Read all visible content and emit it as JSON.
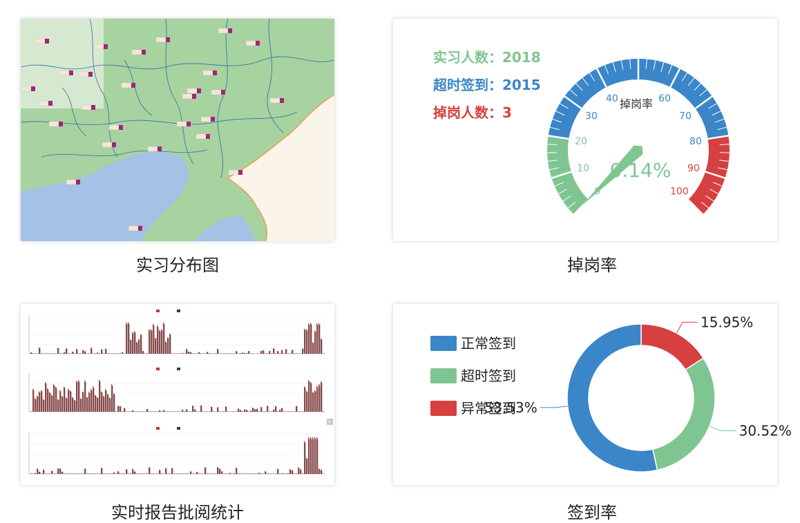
{
  "captions": {
    "map": "实习分布图",
    "gauge": "掉岗率",
    "bars": "实时报告批阅统计",
    "donut": "签到率"
  },
  "gauge": {
    "stats": [
      {
        "label": "实习人数：2018",
        "color": "#7fc592"
      },
      {
        "label": "超时签到：2015",
        "color": "#3a86c8"
      },
      {
        "label": "掉岗人数：3",
        "color": "#d64040"
      }
    ],
    "title": "掉岗率",
    "value_text": "0.14%",
    "value": 0.14,
    "min": 0,
    "max": 100,
    "ticks": [
      "0",
      "10",
      "20",
      "30",
      "40",
      "60",
      "70",
      "80",
      "90",
      "100"
    ],
    "colors": {
      "green": "#7fc592",
      "blue": "#3a86c8",
      "red": "#d64040"
    }
  },
  "chart_data": [
    {
      "type": "pie",
      "variant": "donut",
      "legend_position": "left",
      "series": [
        {
          "name": "正常签到",
          "value": 53.53,
          "label": "53.53%",
          "color": "#3a86c8"
        },
        {
          "name": "超时签到",
          "value": 30.52,
          "label": "30.52%",
          "color": "#7fc592"
        },
        {
          "name": "异常签到",
          "value": 15.95,
          "label": "15.95%",
          "color": "#d64040"
        }
      ]
    }
  ],
  "map": {
    "colors": {
      "land": "#a6d3a0",
      "sea": "#a4c1e6",
      "foreign": "#fbf4e8",
      "border": "#e8a05a",
      "river": "#2f6aa3"
    }
  },
  "bars": {
    "colors": {
      "a": "#c0392b",
      "b": "#2c3e50"
    }
  }
}
